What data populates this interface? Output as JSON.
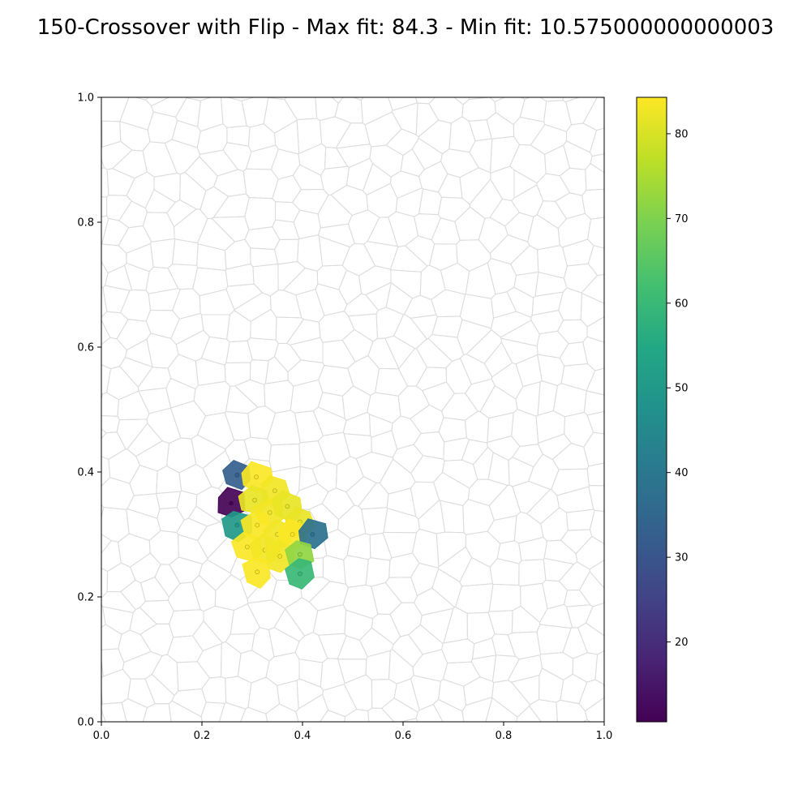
{
  "chart_data": {
    "type": "heatmap",
    "title": "150-Crossover with Flip - Max fit: 84.3 - Min fit: 10.575000000000003",
    "xlim": [
      0.0,
      1.0
    ],
    "ylim": [
      0.0,
      1.0
    ],
    "x_ticks": [
      "0.0",
      "0.2",
      "0.4",
      "0.6",
      "0.8",
      "1.0"
    ],
    "y_ticks": [
      "0.0",
      "0.2",
      "0.4",
      "0.6",
      "0.8",
      "1.0"
    ],
    "grid": false,
    "background_cells": "light gray Voronoi tessellation covering the unit square",
    "colormap": "viridis",
    "colorbar": {
      "range": [
        10.575,
        84.3
      ],
      "ticks": [
        "20",
        "30",
        "40",
        "50",
        "60",
        "70",
        "80"
      ]
    },
    "cells": [
      {
        "x": 0.27,
        "y": 0.395,
        "value": 33
      },
      {
        "x": 0.308,
        "y": 0.392,
        "value": 84
      },
      {
        "x": 0.345,
        "y": 0.37,
        "value": 83
      },
      {
        "x": 0.258,
        "y": 0.35,
        "value": 11
      },
      {
        "x": 0.305,
        "y": 0.355,
        "value": 82
      },
      {
        "x": 0.335,
        "y": 0.335,
        "value": 83
      },
      {
        "x": 0.37,
        "y": 0.345,
        "value": 82
      },
      {
        "x": 0.395,
        "y": 0.32,
        "value": 82
      },
      {
        "x": 0.27,
        "y": 0.315,
        "value": 50
      },
      {
        "x": 0.31,
        "y": 0.315,
        "value": 84
      },
      {
        "x": 0.35,
        "y": 0.3,
        "value": 83
      },
      {
        "x": 0.38,
        "y": 0.3,
        "value": 84
      },
      {
        "x": 0.42,
        "y": 0.3,
        "value": 38
      },
      {
        "x": 0.29,
        "y": 0.28,
        "value": 84
      },
      {
        "x": 0.325,
        "y": 0.275,
        "value": 83
      },
      {
        "x": 0.355,
        "y": 0.265,
        "value": 83
      },
      {
        "x": 0.395,
        "y": 0.268,
        "value": 72
      },
      {
        "x": 0.31,
        "y": 0.24,
        "value": 84
      },
      {
        "x": 0.395,
        "y": 0.237,
        "value": 60
      }
    ]
  }
}
